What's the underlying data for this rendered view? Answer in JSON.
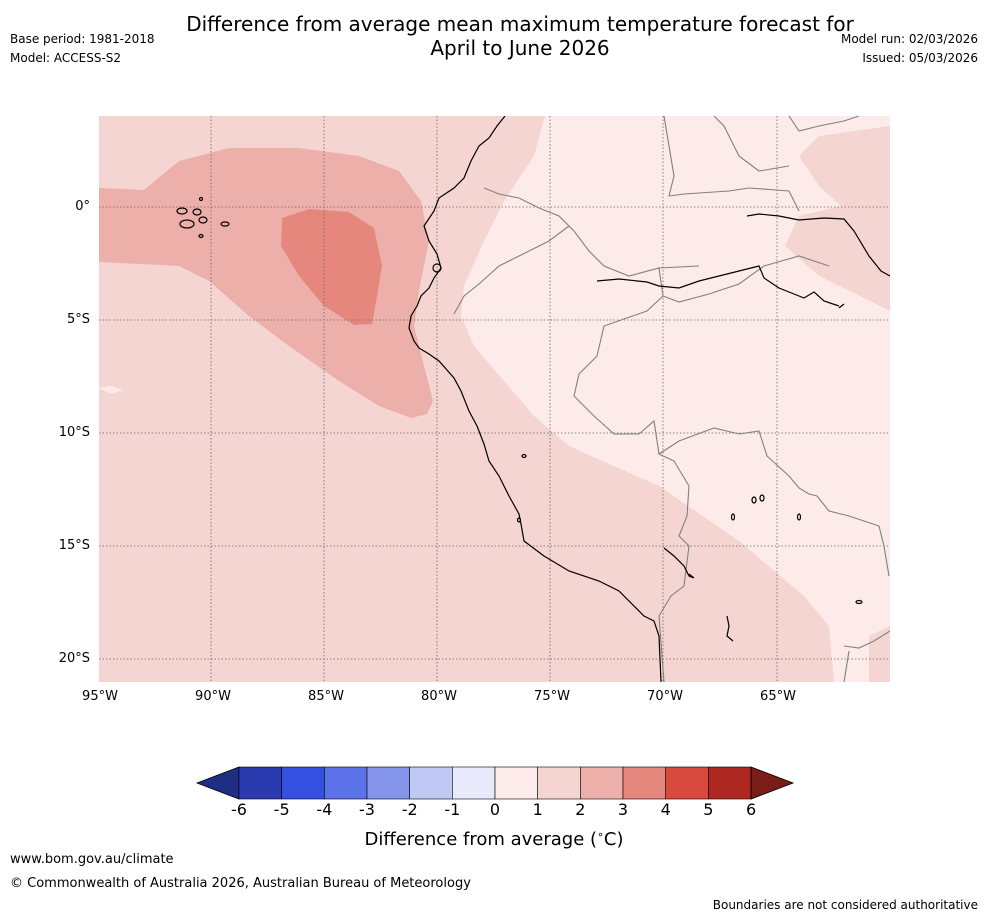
{
  "title_line1": "Difference from average mean maximum temperature forecast for",
  "title_line2": "April to June 2026",
  "base_period": "Base period: 1981-2018",
  "model": "Model: ACCESS-S2",
  "model_run": "Model run: 02/03/2026",
  "issued": "Issued: 05/03/2026",
  "lat_labels": [
    "0°",
    "5°S",
    "10°S",
    "15°S",
    "20°S"
  ],
  "lon_labels": [
    "95°W",
    "90°W",
    "85°W",
    "80°W",
    "75°W",
    "70°W",
    "65°W"
  ],
  "colorbar": {
    "ticks": [
      "-6",
      "-5",
      "-4",
      "-3",
      "-2",
      "-1",
      "0",
      "1",
      "2",
      "3",
      "4",
      "5",
      "6"
    ],
    "colors": [
      "#1f2e85",
      "#2a3bb0",
      "#3550e0",
      "#5b72e8",
      "#8595ec",
      "#c0c8f5",
      "#e8eafb",
      "#fcebe9",
      "#f5d5d2",
      "#edafaa",
      "#e6877e",
      "#d94a3e",
      "#ad2820",
      "#7a1c17"
    ],
    "label": "Difference from average (",
    "label_deg": "∘",
    "label_unit": "C)"
  },
  "footer_url": "www.bom.gov.au/climate",
  "footer_copyright": "© Commonwealth of Australia 2026, Australian Bureau of Meteorology",
  "footer_disclaimer": "Boundaries are not considered authoritative",
  "map_colors": {
    "anomaly_0_1": "#fcebe9",
    "anomaly_1_2": "#f5d5d2",
    "anomaly_2_3": "#edafaa",
    "anomaly_3_4": "#e6877e",
    "coastline": "#000000",
    "border": "#808080",
    "gridline": "#666666"
  }
}
